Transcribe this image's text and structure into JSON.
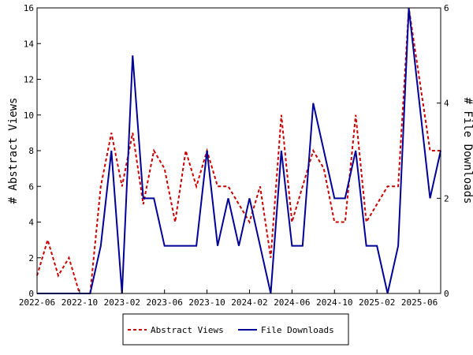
{
  "chart_data": {
    "type": "line",
    "x": [
      "2022-06",
      "2022-07",
      "2022-08",
      "2022-09",
      "2022-10",
      "2022-11",
      "2022-12",
      "2023-01",
      "2023-02",
      "2023-03",
      "2023-04",
      "2023-05",
      "2023-06",
      "2023-07",
      "2023-08",
      "2023-09",
      "2023-10",
      "2023-11",
      "2023-12",
      "2024-01",
      "2024-02",
      "2024-03",
      "2024-04",
      "2024-05",
      "2024-06",
      "2024-07",
      "2024-08",
      "2024-09",
      "2024-10",
      "2024-11",
      "2024-12",
      "2025-01",
      "2025-02",
      "2025-03",
      "2025-04",
      "2025-05",
      "2025-06",
      "2025-07",
      "2025-08"
    ],
    "x_ticks": [
      "2022-06",
      "2022-10",
      "2023-02",
      "2023-06",
      "2023-10",
      "2024-02",
      "2024-06",
      "2024-10",
      "2025-02",
      "2025-06"
    ],
    "series": [
      {
        "name": "Abstract Views",
        "axis": "left",
        "color": "#cc0000",
        "style": "dashed",
        "values": [
          1,
          3,
          1,
          2,
          0,
          0,
          6,
          9,
          6,
          9,
          5,
          8,
          7,
          4,
          8,
          6,
          8,
          6,
          6,
          5,
          4,
          6,
          2,
          10,
          4,
          6,
          8,
          7,
          4,
          4,
          10,
          4,
          5,
          6,
          6,
          16,
          12,
          8,
          8
        ]
      },
      {
        "name": "File Downloads",
        "axis": "right",
        "color": "#000099",
        "style": "solid",
        "values": [
          0,
          0,
          0,
          0,
          0,
          0,
          1,
          3,
          0,
          5,
          2,
          2,
          1,
          1,
          1,
          1,
          3,
          1,
          2,
          1,
          2,
          1,
          0,
          3,
          1,
          1,
          4,
          3,
          2,
          2,
          3,
          1,
          1,
          0,
          1,
          6,
          4,
          2,
          3
        ]
      }
    ],
    "ylabel_left": "# Abstract Views",
    "ylabel_right": "# File Downloads",
    "ylim_left": [
      0,
      16
    ],
    "yticks_left": [
      0,
      2,
      4,
      6,
      8,
      10,
      12,
      14,
      16
    ],
    "ylim_right": [
      0,
      6
    ],
    "yticks_right": [
      0,
      2,
      4,
      6
    ],
    "grid": false,
    "legend_position": "bottom-center"
  }
}
